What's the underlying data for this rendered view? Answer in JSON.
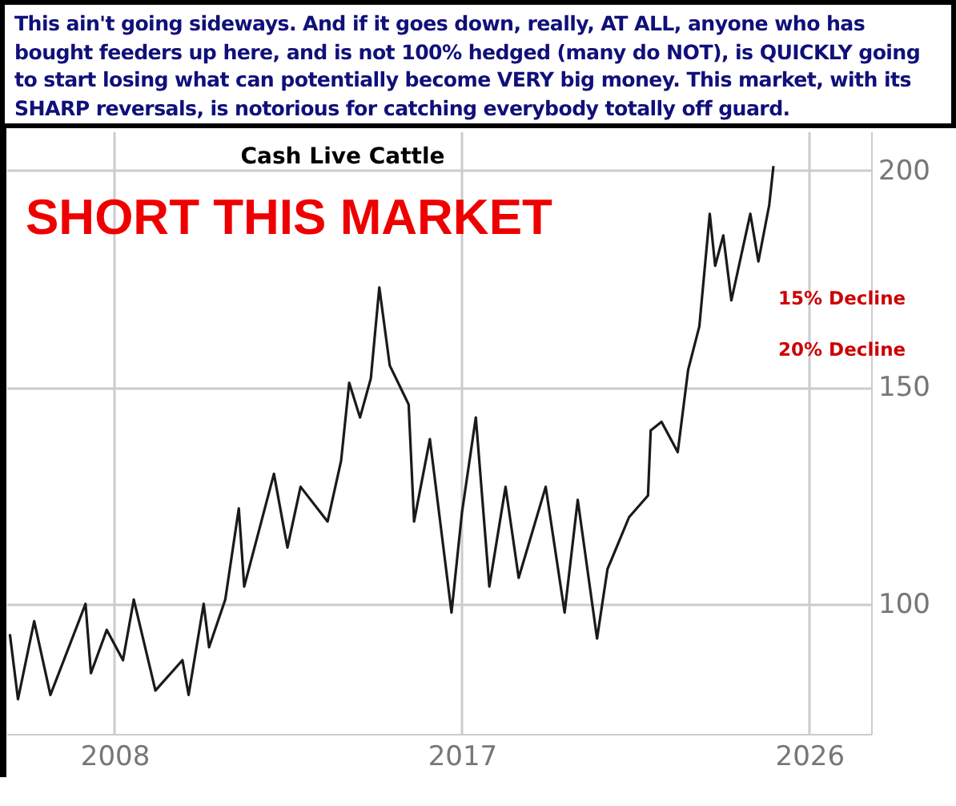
{
  "chart_data": {
    "type": "line",
    "title": "Cash Live Cattle",
    "subtitle": "This ain't going sideways. And if it goes down, really, AT ALL, anyone who has bought feeders up here, and is not 100% hedged (many do NOT), is QUICKLY going to start losing what can potentially become VERY big money. This market, with its SHARP reversals, is notorious for catching everybody totally off guard.",
    "annotations": [
      "SHORT THIS MARKET",
      "15% Decline",
      "20% Decline"
    ],
    "x": [
      2005.29,
      2005.5,
      2005.92,
      2006.34,
      2007.25,
      2007.39,
      2007.8,
      2008.22,
      2008.5,
      2009.06,
      2009.76,
      2009.92,
      2010.31,
      2010.45,
      2010.87,
      2011.22,
      2011.36,
      2012.13,
      2012.48,
      2012.82,
      2013.52,
      2013.87,
      2014.08,
      2014.36,
      2014.64,
      2014.86,
      2015.13,
      2015.62,
      2015.76,
      2016.17,
      2016.73,
      2017.0,
      2017.36,
      2017.71,
      2018.13,
      2018.47,
      2019.17,
      2019.66,
      2020.0,
      2020.5,
      2020.77,
      2021.33,
      2021.82,
      2021.89,
      2022.17,
      2022.59,
      2022.86,
      2023.15,
      2023.42,
      2023.56,
      2023.77,
      2023.98,
      2024.47,
      2024.68,
      2024.96,
      2025.07
    ],
    "series": [
      {
        "color": "#1a1a1a",
        "values": [
          93,
          78,
          96,
          79,
          100,
          84,
          94,
          87,
          101,
          80,
          87,
          79,
          100,
          90,
          101,
          122,
          104,
          130,
          113,
          127,
          119,
          133,
          151,
          143,
          152,
          173,
          155,
          146,
          119,
          138,
          98,
          121,
          143,
          104,
          127,
          106,
          127,
          98,
          124,
          92,
          108,
          120,
          125,
          140,
          142,
          135,
          154,
          164,
          190,
          178,
          185,
          170,
          190,
          179,
          192,
          201
        ]
      }
    ],
    "xlim": [
      2005.2,
      2027.6
    ],
    "xticks": [
      2008,
      2017,
      2026
    ],
    "ylim": [
      70,
      209
    ],
    "yticks": [
      100,
      150,
      200
    ],
    "grid": true
  }
}
